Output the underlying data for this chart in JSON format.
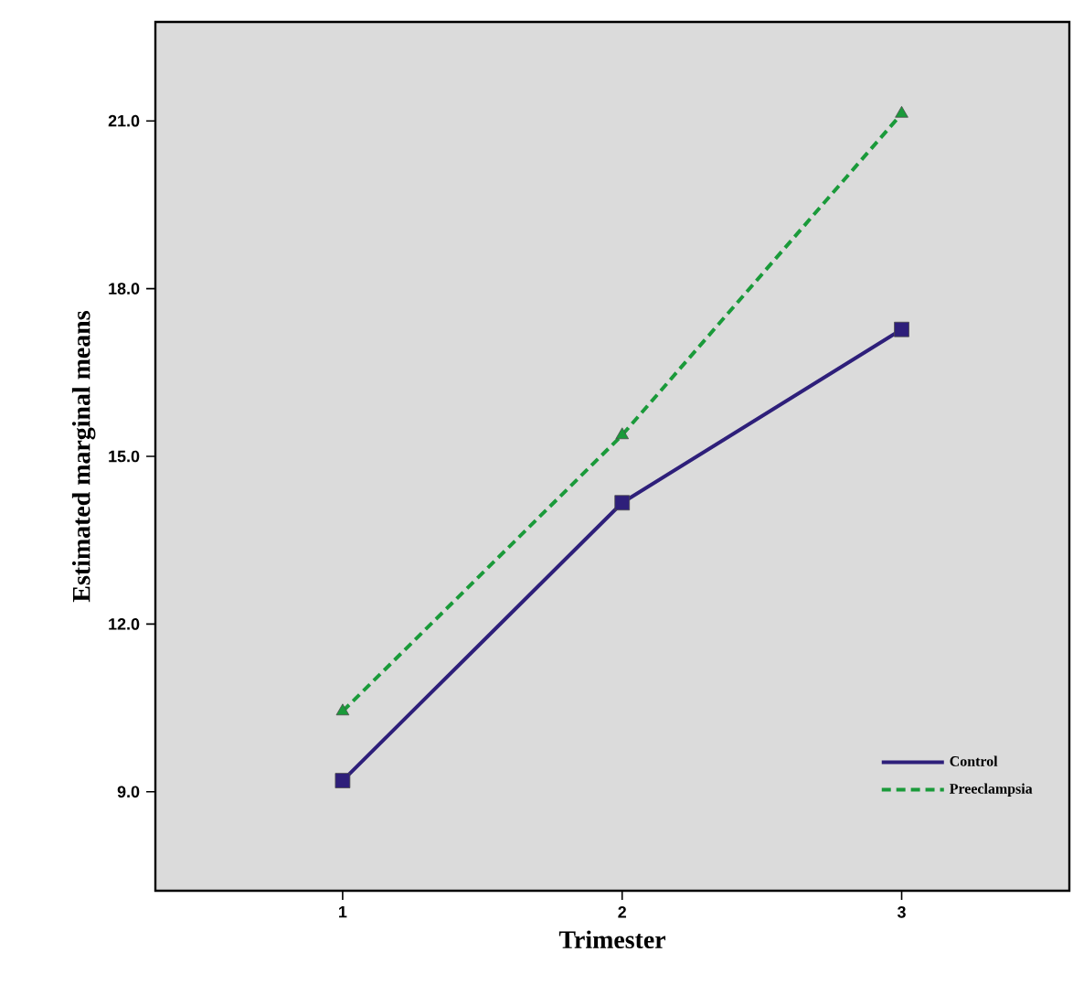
{
  "chart_data": {
    "type": "line",
    "xlabel": "Trimester",
    "ylabel": "Estimated marginal means",
    "x": [
      1,
      2,
      3
    ],
    "xlim": [
      0.33,
      3.6
    ],
    "xticks": [
      1,
      2,
      3
    ],
    "ylim": [
      7.23,
      22.77
    ],
    "yticks": [
      {
        "value": 9,
        "label": "9.0"
      },
      {
        "value": 12,
        "label": "12.0"
      },
      {
        "value": 15,
        "label": "15.0"
      },
      {
        "value": 18,
        "label": "18.0"
      },
      {
        "value": 21,
        "label": "21.0"
      }
    ],
    "grid": false,
    "legend": "bottom right",
    "series": [
      {
        "name": "Control",
        "color": "#2e1f7a",
        "values": [
          9.2,
          14.17,
          17.27
        ],
        "marker": "square",
        "line_style": "solid"
      },
      {
        "name": "Preeclampsia",
        "color": "#1a9a3a",
        "values": [
          10.44,
          15.38,
          21.13
        ],
        "marker": "triangle",
        "line_style": "dashed"
      }
    ]
  }
}
